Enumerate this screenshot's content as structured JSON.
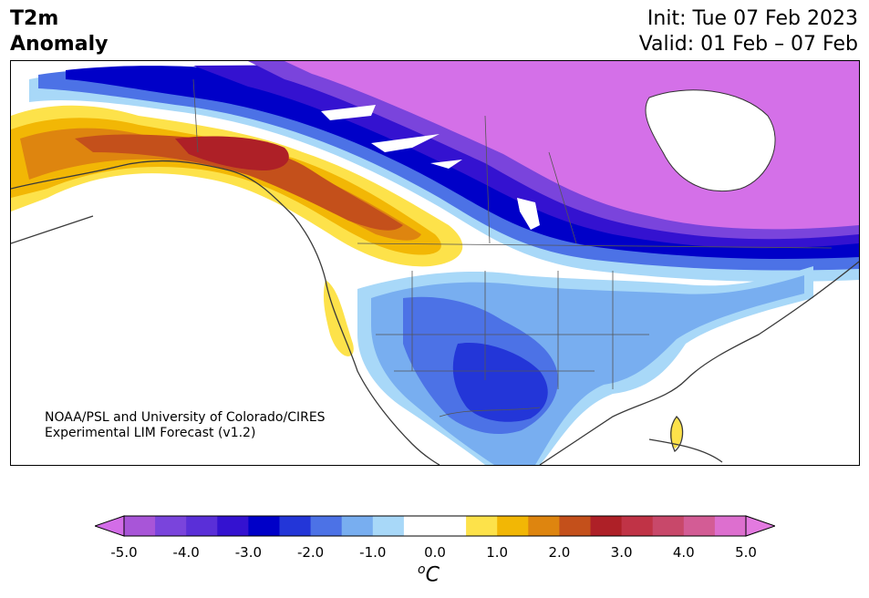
{
  "header": {
    "title_line1": "T2m",
    "title_line2": "Anomaly",
    "init_text": "Init: Tue 07 Feb 2023",
    "valid_text": "Valid: 01 Feb – 07 Feb"
  },
  "credit": {
    "line1": "NOAA/PSL and University of Colorado/CIRES",
    "line2": "Experimental LIM Forecast (v1.2)"
  },
  "colorbar": {
    "unit_base": "C",
    "unit_sup": "o",
    "tick_labels": [
      "-5.0",
      "-4.0",
      "-3.0",
      "-2.0",
      "-1.0",
      "0.0",
      "1.0",
      "2.0",
      "3.0",
      "4.0",
      "5.0"
    ],
    "colors": [
      "#a855d8",
      "#7a44dc",
      "#5a2fd8",
      "#3412d0",
      "#0000c8",
      "#2336d8",
      "#4c72e6",
      "#78aef0",
      "#a8d8f8",
      "#ffffff",
      "#ffffff",
      "#fde24a",
      "#f2b705",
      "#de850f",
      "#c4501b",
      "#ae2027",
      "#c03346",
      "#c8486a",
      "#d35c95",
      "#dd6fcf"
    ],
    "under_color": "#d36de8",
    "over_color": "#e37ae0"
  },
  "palette": {
    "strong_cold": "#d470e8",
    "cold5": "#7a44dc",
    "cold4": "#3412d0",
    "cold3": "#0000c8",
    "cold2": "#2336d8",
    "cold1": "#4c72e6",
    "cool2": "#78aef0",
    "cool1": "#a8d8f8",
    "warm1": "#fde24a",
    "warm2": "#f2b705",
    "warm3": "#de850f",
    "warm4": "#c4501b",
    "warm5": "#ae2027"
  }
}
